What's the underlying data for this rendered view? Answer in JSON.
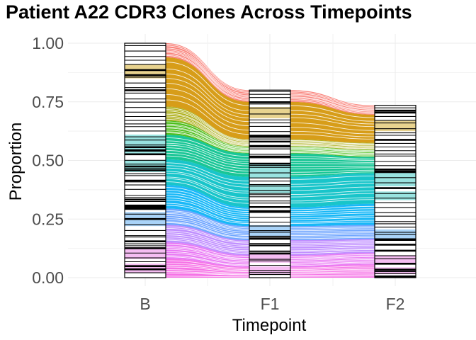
{
  "chart_data": {
    "type": "area",
    "title": "Patient A22 CDR3 Clones Across Timepoints",
    "xlabel": "Timepoint",
    "ylabel": "Proportion",
    "categories": [
      "B",
      "F1",
      "F2"
    ],
    "ylim": [
      0,
      1.0
    ],
    "y_ticks": [
      {
        "value": 0.0,
        "label": "0.00"
      },
      {
        "value": 0.25,
        "label": "0.25"
      },
      {
        "value": 0.5,
        "label": "0.50"
      },
      {
        "value": 0.75,
        "label": "0.75"
      },
      {
        "value": 1.0,
        "label": "1.00"
      }
    ],
    "totals": [
      1.0,
      0.8,
      0.735
    ],
    "grid": true,
    "legend": "none",
    "series": [
      {
        "values": [
          0.08,
          0.045,
          0.055
        ],
        "color": "#f564e3"
      },
      {
        "values": [
          0.07,
          0.05,
          0.05
        ],
        "color": "#e76bf3"
      },
      {
        "values": [
          0.075,
          0.065,
          0.06
        ],
        "color": "#b983ff"
      },
      {
        "values": [
          0.07,
          0.06,
          0.06
        ],
        "color": "#619cff"
      },
      {
        "values": [
          0.1,
          0.08,
          0.09
        ],
        "color": "#00b0f6"
      },
      {
        "values": [
          0.11,
          0.13,
          0.13
        ],
        "color": "#00bfc4"
      },
      {
        "values": [
          0.105,
          0.1,
          0.07
        ],
        "color": "#00c08b"
      },
      {
        "values": [
          0.06,
          0.03,
          0.03
        ],
        "color": "#39b600"
      },
      {
        "values": [
          0.06,
          0.03,
          0.03
        ],
        "color": "#a3a500"
      },
      {
        "values": [
          0.21,
          0.16,
          0.12
        ],
        "color": "#d39200"
      },
      {
        "values": [
          0.06,
          0.05,
          0.04
        ],
        "color": "#f8766d"
      }
    ],
    "bar_highlight_bands": [
      {
        "lo": 0.85,
        "hi": 0.91,
        "color": "#e8d38f"
      },
      {
        "lo": 0.53,
        "hi": 0.61,
        "color": "#99e3e0"
      },
      {
        "lo": 0.45,
        "hi": 0.5,
        "color": "#99e3e0"
      },
      {
        "lo": 0.22,
        "hi": 0.28,
        "color": "#a9d3f8"
      },
      {
        "lo": 0.08,
        "hi": 0.13,
        "color": "#f5bdf2"
      },
      {
        "lo": 0.02,
        "hi": 0.06,
        "color": "#f5bdf2"
      }
    ]
  }
}
